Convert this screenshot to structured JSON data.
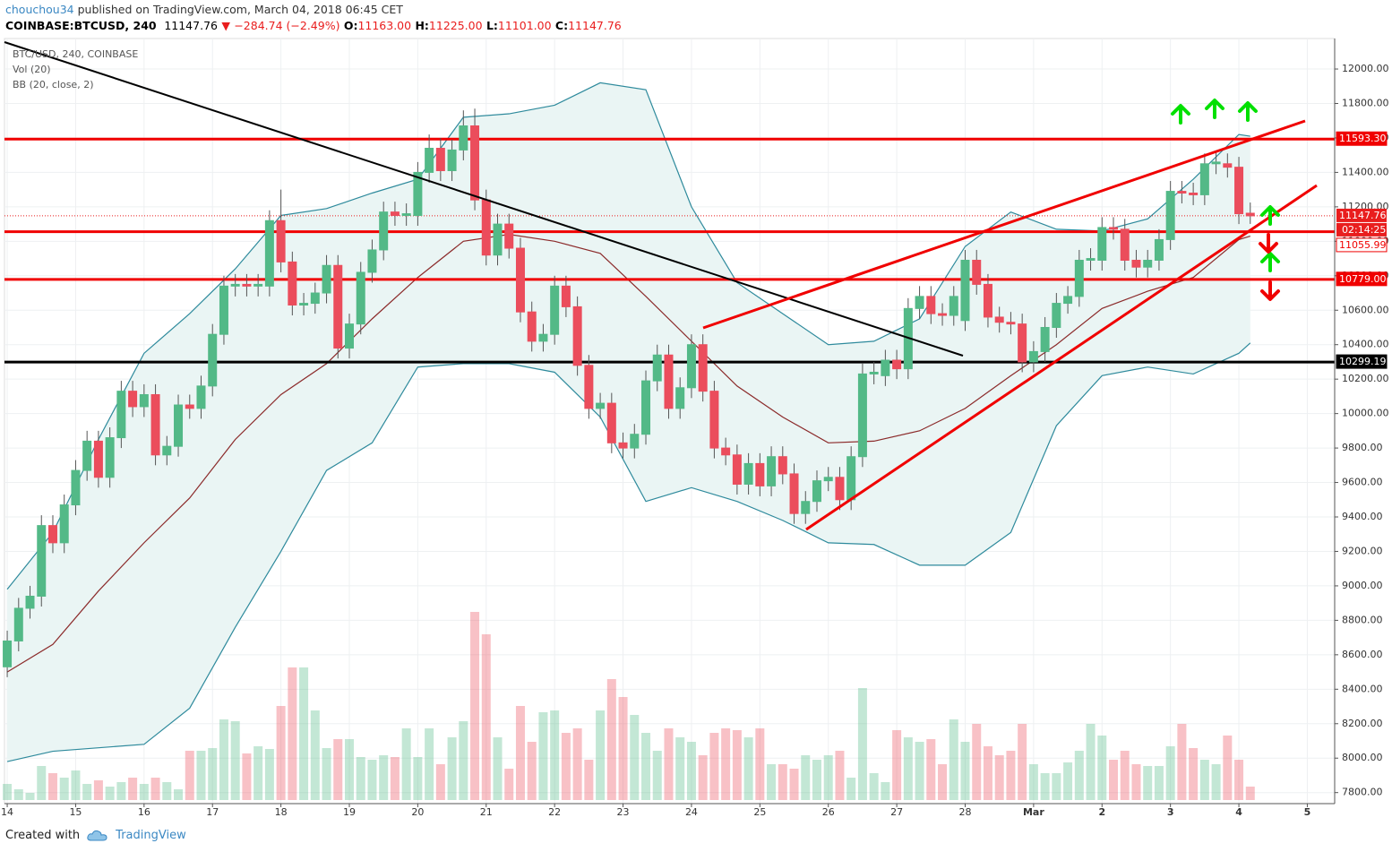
{
  "header": {
    "author": "chouchou34",
    "published": "published on TradingView.com, March 04, 2018 06:45 CET",
    "symbol": "COINBASE:BTCUSD, 240",
    "last": "11147.76",
    "change": "−284.74 (−2.49%)",
    "ohlc": [
      {
        "key": "O:",
        "value": "11163.00"
      },
      {
        "key": "H:",
        "value": "11225.00"
      },
      {
        "key": "L:",
        "value": "11101.00"
      },
      {
        "key": "C:",
        "value": "11147.76"
      }
    ]
  },
  "footer": {
    "created": "Created with",
    "brand": "TradingView"
  },
  "chart_data": {
    "type": "candlestick",
    "title": "BTC/USD, 240, COINBASE",
    "indicators": [
      "Vol (20)",
      "BB (20, close, 2)"
    ],
    "up_color": "#53b987",
    "down_color": "#eb4d5c",
    "band_color": "#2e8a9c",
    "mid_color": "#8b2a2a",
    "band_fill": "#eaf5f4",
    "grid": true,
    "xlim": [
      13.96,
      33.4
    ],
    "ylim": [
      7736,
      12177
    ],
    "xticks": [
      14,
      15,
      16,
      17,
      18,
      19,
      20,
      21,
      22,
      23,
      24,
      25,
      26,
      27,
      28,
      {
        "value": 29,
        "label": "Mar"
      },
      {
        "value": 30,
        "label": "2"
      },
      {
        "value": 31,
        "label": "3"
      },
      {
        "value": 32,
        "label": "4"
      },
      {
        "value": 33,
        "label": "5"
      }
    ],
    "yticks": [
      {
        "value": 7800,
        "label": "7800.00"
      },
      {
        "value": 8000,
        "label": "8000.00"
      },
      {
        "value": 8200,
        "label": "8200.00"
      },
      {
        "value": 8400,
        "label": "8400.00"
      },
      {
        "value": 8600,
        "label": "8600.00"
      },
      {
        "value": 8800,
        "label": "8800.00"
      },
      {
        "value": 9000,
        "label": "9000.00"
      },
      {
        "value": 9200,
        "label": "9200.00"
      },
      {
        "value": 9400,
        "label": "9400.00"
      },
      {
        "value": 9600,
        "label": "9600.00"
      },
      {
        "value": 9800,
        "label": "9800.00"
      },
      {
        "value": 10000,
        "label": "10000.00"
      },
      {
        "value": 10200,
        "label": "10200.00"
      },
      {
        "value": 10400,
        "label": "10400.00"
      },
      {
        "value": 10600,
        "label": "10600.00"
      },
      {
        "value": 10800,
        "label": "10800.00"
      },
      {
        "value": 11000,
        "label": "11000.00"
      },
      {
        "value": 11200,
        "label": "11200.00"
      },
      {
        "value": 11400,
        "label": "11400.00"
      },
      {
        "value": 11600,
        "label": "11600.00"
      },
      {
        "value": 11800,
        "label": "11800.00"
      },
      {
        "value": 12000,
        "label": "12000.00"
      }
    ],
    "x": [
      14,
      14.1667,
      14.3333,
      14.5,
      14.6667,
      14.8333,
      15,
      15.1667,
      15.3333,
      15.5,
      15.6667,
      15.8333,
      16,
      16.1667,
      16.3333,
      16.5,
      16.6667,
      16.8333,
      17,
      17.1667,
      17.3333,
      17.5,
      17.6667,
      17.8333,
      18,
      18.1667,
      18.3333,
      18.5,
      18.6667,
      18.8333,
      19,
      19.1667,
      19.3333,
      19.5,
      19.6667,
      19.8333,
      20,
      20.1667,
      20.3333,
      20.5,
      20.6667,
      20.8333,
      21,
      21.1667,
      21.3333,
      21.5,
      21.6667,
      21.8333,
      22,
      22.1667,
      22.3333,
      22.5,
      22.6667,
      22.8333,
      23,
      23.1667,
      23.3333,
      23.5,
      23.6667,
      23.8333,
      24,
      24.1667,
      24.3333,
      24.5,
      24.6667,
      24.8333,
      25,
      25.1667,
      25.3333,
      25.5,
      25.6667,
      25.8333,
      26,
      26.1667,
      26.3333,
      26.5,
      26.6667,
      26.8333,
      27,
      27.1667,
      27.3333,
      27.5,
      27.6667,
      27.8333,
      28,
      28.1667,
      28.3333,
      28.5,
      28.6667,
      28.8333,
      29,
      29.1667,
      29.3333,
      29.5,
      29.6667,
      29.8333,
      30,
      30.1667,
      30.3333,
      30.5,
      30.6667,
      30.8333,
      31,
      31.1667,
      31.3333,
      31.5,
      31.6667,
      31.8333,
      32,
      32.1667
    ],
    "open": [
      8530,
      8680,
      8870,
      8940,
      9350,
      9250,
      9470,
      9670,
      9840,
      9630,
      9860,
      10130,
      10040,
      10110,
      9760,
      9810,
      10050,
      10030,
      10160,
      10460,
      10740,
      10750,
      10740,
      10740,
      11120,
      10880,
      10630,
      10640,
      10700,
      10860,
      10380,
      10520,
      10820,
      10950,
      11170,
      11150,
      11150,
      11400,
      11540,
      11410,
      11530,
      11670,
      11240,
      10920,
      11100,
      10960,
      10590,
      10420,
      10460,
      10740,
      10620,
      10280,
      10030,
      10060,
      9830,
      9800,
      9880,
      10190,
      10340,
      10030,
      10150,
      10400,
      10130,
      9800,
      9760,
      9590,
      9710,
      9580,
      9750,
      9650,
      9420,
      9490,
      9610,
      9630,
      9500,
      9750,
      10230,
      10220,
      10310,
      10260,
      10610,
      10680,
      10580,
      10570,
      10540,
      10890,
      10750,
      10560,
      10530,
      10520,
      10300,
      10360,
      10500,
      10640,
      10680,
      10890,
      10890,
      11080,
      11070,
      10890,
      10850,
      10890,
      11010,
      11290,
      11280,
      11270,
      11450,
      11450,
      11430,
      11163
    ],
    "high": [
      8740,
      8930,
      9000,
      9410,
      9410,
      9530,
      9730,
      9900,
      9900,
      9920,
      10190,
      10190,
      10170,
      10170,
      9870,
      10110,
      10110,
      10220,
      10520,
      10800,
      10810,
      10810,
      10810,
      11180,
      11300,
      10940,
      10700,
      10760,
      10920,
      10920,
      10580,
      10880,
      11010,
      11230,
      11230,
      11220,
      11460,
      11620,
      11600,
      11590,
      11760,
      11770,
      11300,
      11160,
      11160,
      11020,
      10650,
      10520,
      10800,
      10800,
      10680,
      10340,
      10120,
      10120,
      9890,
      9940,
      10250,
      10400,
      10400,
      10210,
      10460,
      10460,
      10190,
      9860,
      9820,
      9770,
      9770,
      9810,
      9810,
      9710,
      9550,
      9670,
      9690,
      9690,
      9810,
      10290,
      10300,
      10370,
      10370,
      10670,
      10740,
      10740,
      10640,
      10740,
      10950,
      10950,
      10810,
      10620,
      10590,
      10580,
      10420,
      10560,
      10700,
      10740,
      10950,
      10960,
      11140,
      11140,
      11130,
      10950,
      10950,
      11070,
      11350,
      11350,
      11340,
      11510,
      11520,
      11510,
      11490,
      11225
    ],
    "low": [
      8470,
      8620,
      8810,
      8880,
      9190,
      9190,
      9410,
      9610,
      9570,
      9570,
      9800,
      9980,
      9980,
      9700,
      9700,
      9750,
      9970,
      9970,
      10100,
      10400,
      10680,
      10680,
      10680,
      10680,
      10820,
      10570,
      10570,
      10580,
      10640,
      10320,
      10320,
      10460,
      10760,
      10890,
      11090,
      11090,
      11090,
      11340,
      11350,
      11350,
      11470,
      11180,
      10860,
      10860,
      10900,
      10530,
      10360,
      10360,
      10400,
      10560,
      10220,
      9970,
      9970,
      9770,
      9740,
      9740,
      9820,
      10130,
      9970,
      9970,
      10090,
      10070,
      9740,
      9700,
      9530,
      9530,
      9520,
      9520,
      9590,
      9360,
      9360,
      9430,
      9550,
      9440,
      9440,
      9690,
      10170,
      10160,
      10200,
      10200,
      10550,
      10520,
      10510,
      10510,
      10480,
      10690,
      10500,
      10470,
      10460,
      10240,
      10240,
      10300,
      10440,
      10580,
      10620,
      10830,
      10830,
      11010,
      10830,
      10790,
      10790,
      10830,
      10950,
      11220,
      11210,
      11210,
      11390,
      11370,
      11100,
      11101
    ],
    "close": [
      8680,
      8870,
      8940,
      9350,
      9250,
      9470,
      9670,
      9840,
      9630,
      9860,
      10130,
      10040,
      10110,
      9760,
      9810,
      10050,
      10030,
      10160,
      10460,
      10740,
      10750,
      10740,
      10750,
      11120,
      10880,
      10630,
      10640,
      10700,
      10860,
      10380,
      10520,
      10820,
      10950,
      11170,
      11150,
      11160,
      11400,
      11540,
      11410,
      11530,
      11670,
      11240,
      10920,
      11100,
      10960,
      10590,
      10420,
      10460,
      10740,
      10620,
      10280,
      10030,
      10060,
      9830,
      9800,
      9880,
      10190,
      10340,
      10030,
      10150,
      10400,
      10130,
      9800,
      9760,
      9590,
      9710,
      9580,
      9750,
      9650,
      9420,
      9490,
      9610,
      9630,
      9500,
      9750,
      10230,
      10240,
      10310,
      10260,
      10610,
      10680,
      10580,
      10570,
      10680,
      10890,
      10750,
      10560,
      10530,
      10520,
      10300,
      10360,
      10500,
      10640,
      10680,
      10890,
      10900,
      11080,
      11070,
      10890,
      10850,
      10890,
      11010,
      11290,
      11280,
      11270,
      11450,
      11460,
      11430,
      11160,
      11147.76
    ],
    "volume": [
      18,
      12,
      8,
      38,
      30,
      25,
      33,
      18,
      22,
      15,
      20,
      25,
      18,
      25,
      20,
      12,
      55,
      55,
      58,
      90,
      88,
      52,
      60,
      57,
      105,
      148,
      148,
      100,
      58,
      68,
      68,
      48,
      45,
      50,
      48,
      80,
      48,
      80,
      40,
      70,
      88,
      210,
      185,
      70,
      35,
      105,
      65,
      98,
      100,
      75,
      80,
      45,
      100,
      135,
      115,
      95,
      75,
      55,
      80,
      70,
      65,
      50,
      75,
      80,
      78,
      70,
      80,
      40,
      40,
      35,
      50,
      45,
      50,
      55,
      25,
      125,
      30,
      20,
      78,
      70,
      65,
      68,
      40,
      90,
      65,
      85,
      60,
      50,
      55,
      85,
      40,
      30,
      30,
      42,
      55,
      85,
      72,
      45,
      55,
      40,
      38,
      38,
      60,
      85,
      58,
      45,
      40,
      72,
      45,
      15
    ],
    "bands_x": [
      14,
      14.6667,
      15.3333,
      16,
      16.6667,
      17.3333,
      18,
      18.6667,
      19.3333,
      20,
      20.6667,
      21.3333,
      22,
      22.6667,
      23.3333,
      24,
      24.6667,
      25.3333,
      26,
      26.6667,
      27.3333,
      28,
      28.6667,
      29.3333,
      30,
      30.6667,
      31.3333,
      32,
      32.1667
    ],
    "bands": [
      {
        "values": [
          8980,
          9310,
          9850,
          10350,
          10580,
          10840,
          11150,
          11190,
          11280,
          11360,
          11720,
          11740,
          11790,
          11920,
          11880,
          11200,
          10760,
          10580,
          10400,
          10420,
          10550,
          10970,
          11170,
          11070,
          11060,
          11130,
          11360,
          11620,
          11610
        ]
      },
      {
        "values": [
          8500,
          8660,
          8970,
          9250,
          9510,
          9850,
          10110,
          10290,
          10550,
          10790,
          11000,
          11040,
          11000,
          10930,
          10680,
          10420,
          10160,
          9980,
          9830,
          9840,
          9900,
          10030,
          10220,
          10400,
          10610,
          10710,
          10790,
          11010,
          11030
        ]
      },
      {
        "values": [
          7980,
          8040,
          8060,
          8080,
          8290,
          8760,
          9200,
          9670,
          9830,
          10270,
          10290,
          10290,
          10240,
          9980,
          9490,
          9570,
          9490,
          9380,
          9250,
          9240,
          9120,
          9120,
          9310,
          9930,
          10220,
          10270,
          10230,
          10350,
          10410
        ]
      }
    ],
    "levels": [
      {
        "value": 11593.3,
        "label": "11593.30",
        "color": "#f00000"
      },
      {
        "value": 11055.99,
        "label": "11055.99",
        "color": "#f00000"
      },
      {
        "value": 10779,
        "label": "10779.00",
        "color": "#f00000"
      },
      {
        "value": 10299.19,
        "label": "10299.19",
        "color": "#000000"
      }
    ],
    "last_price": {
      "value": 11147.76,
      "label": "11147.76",
      "countdown": "02:14:25",
      "color": "#e91e1e"
    }
  }
}
